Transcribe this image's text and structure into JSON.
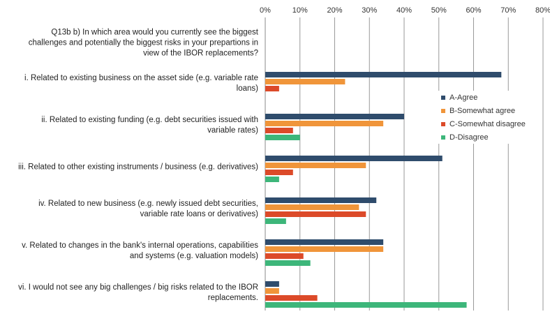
{
  "chart_data": {
    "type": "bar",
    "orientation": "horizontal",
    "title": "Q13b b) In which area would you currently see the biggest challenges and potentially the biggest risks in your prepartions in view of the IBOR replacements?",
    "categories": [
      "i. Related to existing business on the asset side (e.g. variable rate loans)",
      "ii. Related to existing funding (e.g. debt securities issued with variable rates)",
      "iii. Related to other existing instruments / business (e.g. derivatives)",
      "iv. Related to new business (e.g. newly issued debt securities, variable rate loans or derivatives)",
      "v. Related to changes in the bank's internal operations, capabilities and systems (e.g. valuation models)",
      "vi. I would not see any big challenges / big risks related to the IBOR replacements."
    ],
    "series": [
      {
        "name": "A-Agree",
        "color": "#2f4c6c",
        "values": [
          68,
          40,
          51,
          32,
          34,
          4
        ]
      },
      {
        "name": "B-Somewhat agree",
        "color": "#f0953a",
        "values": [
          23,
          34,
          29,
          27,
          34,
          4
        ]
      },
      {
        "name": "C-Somewhat disagree",
        "color": "#dc4a29",
        "values": [
          4,
          8,
          8,
          29,
          11,
          15
        ]
      },
      {
        "name": "D-Disagree",
        "color": "#3db67a",
        "values": [
          0,
          10,
          4,
          6,
          13,
          58
        ]
      }
    ],
    "xlim": [
      0,
      80
    ],
    "xticks": [
      {
        "value": 0,
        "label": "0%"
      },
      {
        "value": 10,
        "label": "10%"
      },
      {
        "value": 20,
        "label": "20%"
      },
      {
        "value": 30,
        "label": "30%"
      },
      {
        "value": 40,
        "label": "40%"
      },
      {
        "value": 50,
        "label": "50%"
      },
      {
        "value": 60,
        "label": "60%"
      },
      {
        "value": 70,
        "label": "70%"
      },
      {
        "value": 80,
        "label": "80%"
      }
    ],
    "grid": true,
    "legend": "right"
  }
}
